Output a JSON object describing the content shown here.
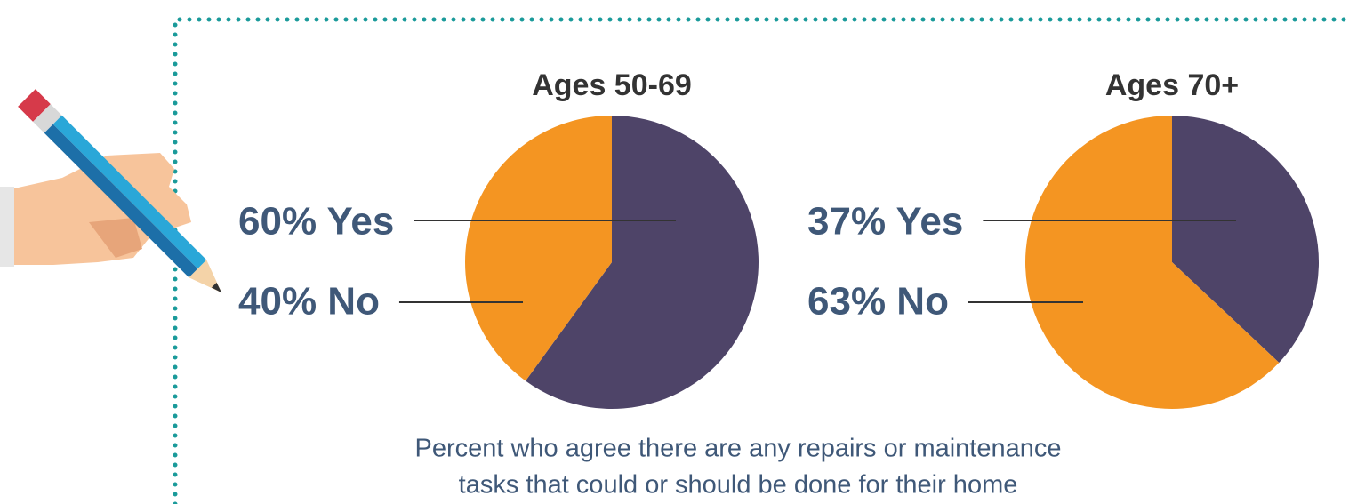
{
  "chart_data": [
    {
      "type": "pie",
      "title": "Ages 50-69",
      "values": [
        60,
        40
      ],
      "value_labels": [
        "60% Yes",
        "40% No"
      ],
      "colors": [
        "#4e4468",
        "#f49522"
      ]
    },
    {
      "type": "pie",
      "title": "Ages 70+",
      "values": [
        37,
        63
      ],
      "value_labels": [
        "37% Yes",
        "63% No"
      ],
      "colors": [
        "#4e4468",
        "#f49522"
      ]
    }
  ],
  "caption": [
    "Percent who agree there are any repairs or maintenance",
    "tasks that could or should be done for their home"
  ]
}
